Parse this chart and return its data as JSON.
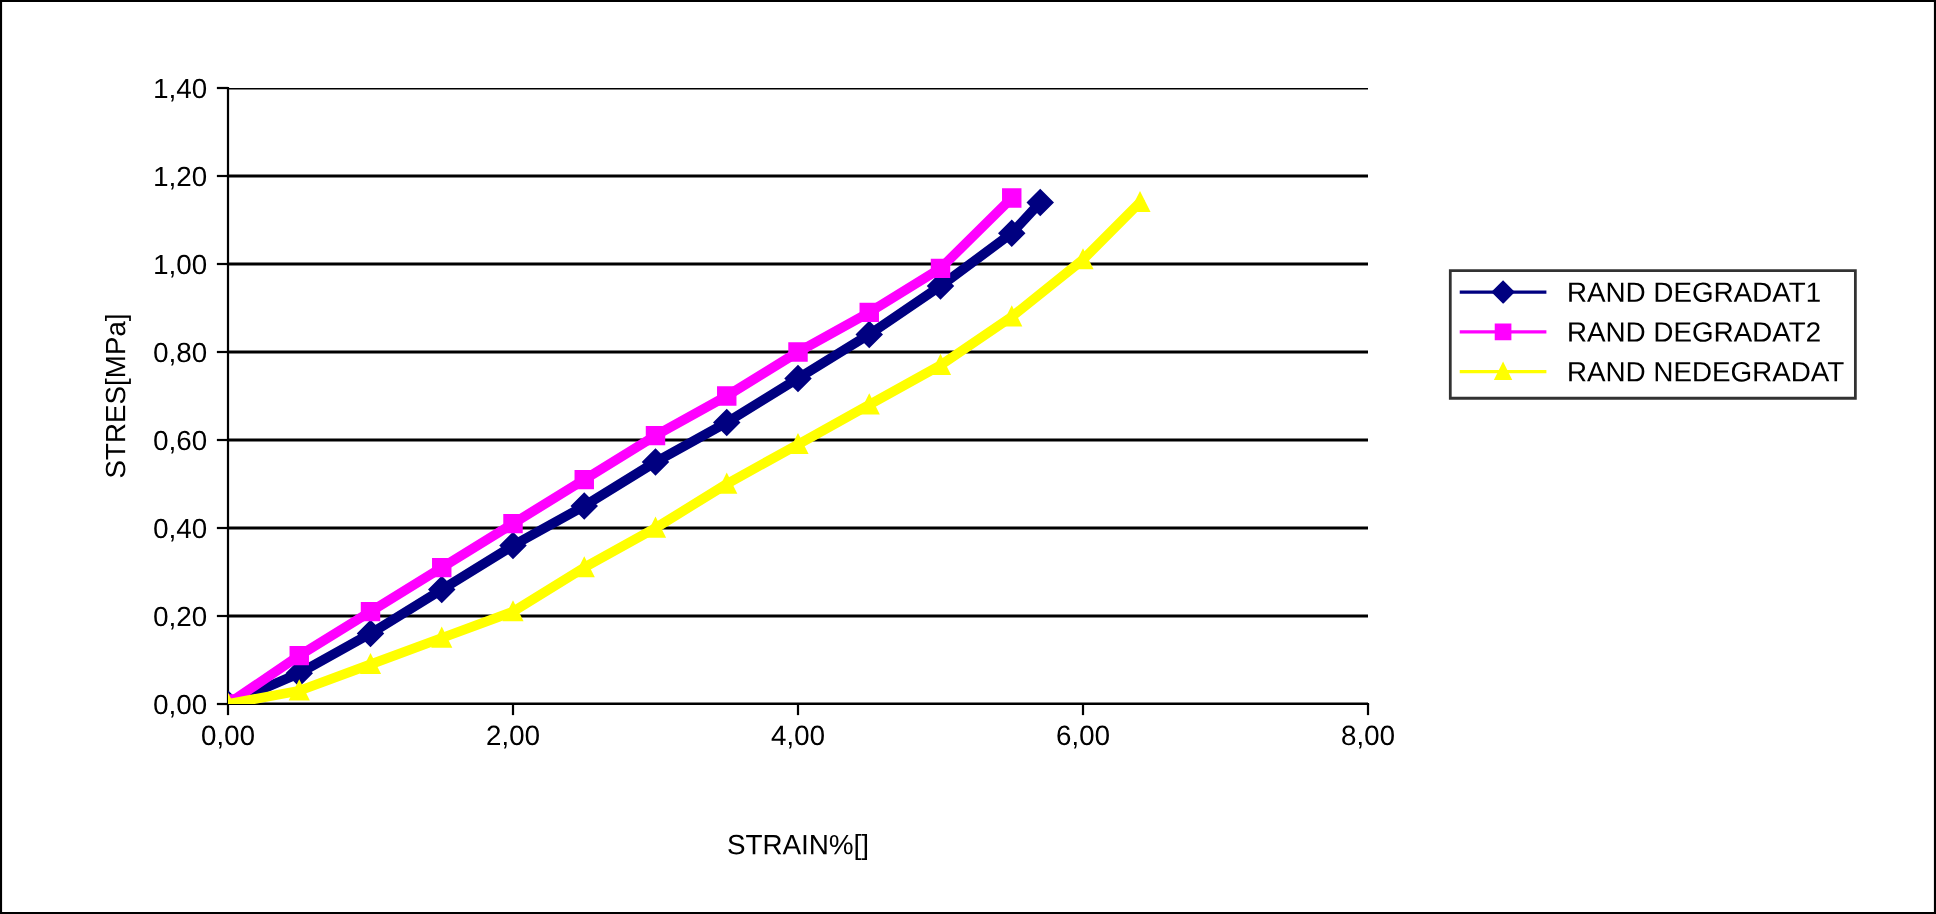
{
  "chart_data": {
    "type": "line",
    "xlabel": "STRAIN%[]",
    "ylabel": "STRES[MPa]",
    "xlim": [
      0,
      8
    ],
    "ylim": [
      0,
      1.4
    ],
    "xticks": [
      {
        "value": 0,
        "label": "0,00"
      },
      {
        "value": 2,
        "label": "2,00"
      },
      {
        "value": 4,
        "label": "4,00"
      },
      {
        "value": 6,
        "label": "6,00"
      },
      {
        "value": 8,
        "label": "8,00"
      }
    ],
    "yticks": [
      {
        "value": 0,
        "label": "0,00"
      },
      {
        "value": 0.2,
        "label": "0,20"
      },
      {
        "value": 0.4,
        "label": "0,40"
      },
      {
        "value": 0.6,
        "label": "0,60"
      },
      {
        "value": 0.8,
        "label": "0,80"
      },
      {
        "value": 1.0,
        "label": "1,00"
      },
      {
        "value": 1.2,
        "label": "1,20"
      },
      {
        "value": 1.4,
        "label": "1,40"
      }
    ],
    "grid": "y",
    "legend": "right",
    "series": [
      {
        "name": "RAND DEGRADAT1",
        "color": "#000080",
        "marker": "diamond",
        "x": [
          0,
          0.5,
          1,
          1.5,
          2,
          2.5,
          3,
          3.5,
          4,
          4.5,
          5,
          5.5,
          5.7
        ],
        "values": [
          0,
          0.07,
          0.16,
          0.26,
          0.36,
          0.45,
          0.55,
          0.64,
          0.74,
          0.84,
          0.95,
          1.07,
          1.14
        ]
      },
      {
        "name": "RAND DEGRADAT2",
        "color": "#ff00ff",
        "marker": "square",
        "x": [
          0,
          0.5,
          1,
          1.5,
          2,
          2.5,
          3,
          3.5,
          4,
          4.5,
          5,
          5.5
        ],
        "values": [
          0,
          0.11,
          0.21,
          0.31,
          0.41,
          0.51,
          0.61,
          0.7,
          0.8,
          0.89,
          0.99,
          1.15
        ]
      },
      {
        "name": "RAND NEDEGRADAT",
        "color": "#ffff00",
        "marker": "triangle",
        "x": [
          0,
          0.5,
          1,
          1.5,
          2,
          2.5,
          3,
          3.5,
          4,
          4.5,
          5,
          5.5,
          6,
          6.4
        ],
        "values": [
          0,
          0.03,
          0.09,
          0.15,
          0.21,
          0.31,
          0.4,
          0.5,
          0.59,
          0.68,
          0.77,
          0.88,
          1.01,
          1.14
        ]
      }
    ]
  }
}
